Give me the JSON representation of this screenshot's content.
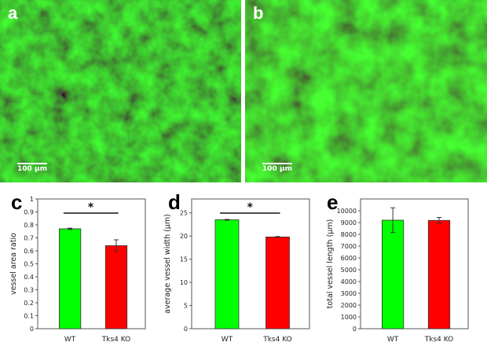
{
  "panels": {
    "a": "a",
    "b": "b",
    "c": "c",
    "d": "d",
    "e": "e"
  },
  "scale_bar": "100 µm",
  "colors": {
    "wt": "#00ff00",
    "ko": "#ff0000",
    "micrograph": "#22aa22"
  },
  "chart_data": [
    {
      "type": "bar",
      "panel": "c",
      "categories": [
        "WT",
        "Tks4 KO"
      ],
      "values": [
        0.77,
        0.64
      ],
      "errors": [
        0.005,
        0.045
      ],
      "ylabel": "vessel area ratio",
      "ylim": [
        0,
        1
      ],
      "yticks": [
        "0",
        "0.1",
        "0.2",
        "0.3",
        "0.4",
        "0.5",
        "0.6",
        "0.7",
        "0.8",
        "0.9",
        "1"
      ],
      "significance": "*"
    },
    {
      "type": "bar",
      "panel": "d",
      "categories": [
        "WT",
        "Tks4 KO"
      ],
      "values": [
        23.5,
        19.8
      ],
      "errors": [
        0.1,
        0.1
      ],
      "ylabel": "average vessel width (µm)",
      "ylim": [
        0,
        28
      ],
      "yticks": [
        "0",
        "5",
        "10",
        "15",
        "20",
        "25"
      ],
      "significance": "*"
    },
    {
      "type": "bar",
      "panel": "e",
      "categories": [
        "WT",
        "Tks4 KO"
      ],
      "values": [
        9200,
        9180
      ],
      "errors": [
        1050,
        250
      ],
      "ylabel": "total vessel length (µm)",
      "ylim": [
        0,
        11000
      ],
      "yticks": [
        "0",
        "1000",
        "2000",
        "3000",
        "4000",
        "5000",
        "6000",
        "7000",
        "8000",
        "9000",
        "10000"
      ],
      "significance": ""
    }
  ]
}
